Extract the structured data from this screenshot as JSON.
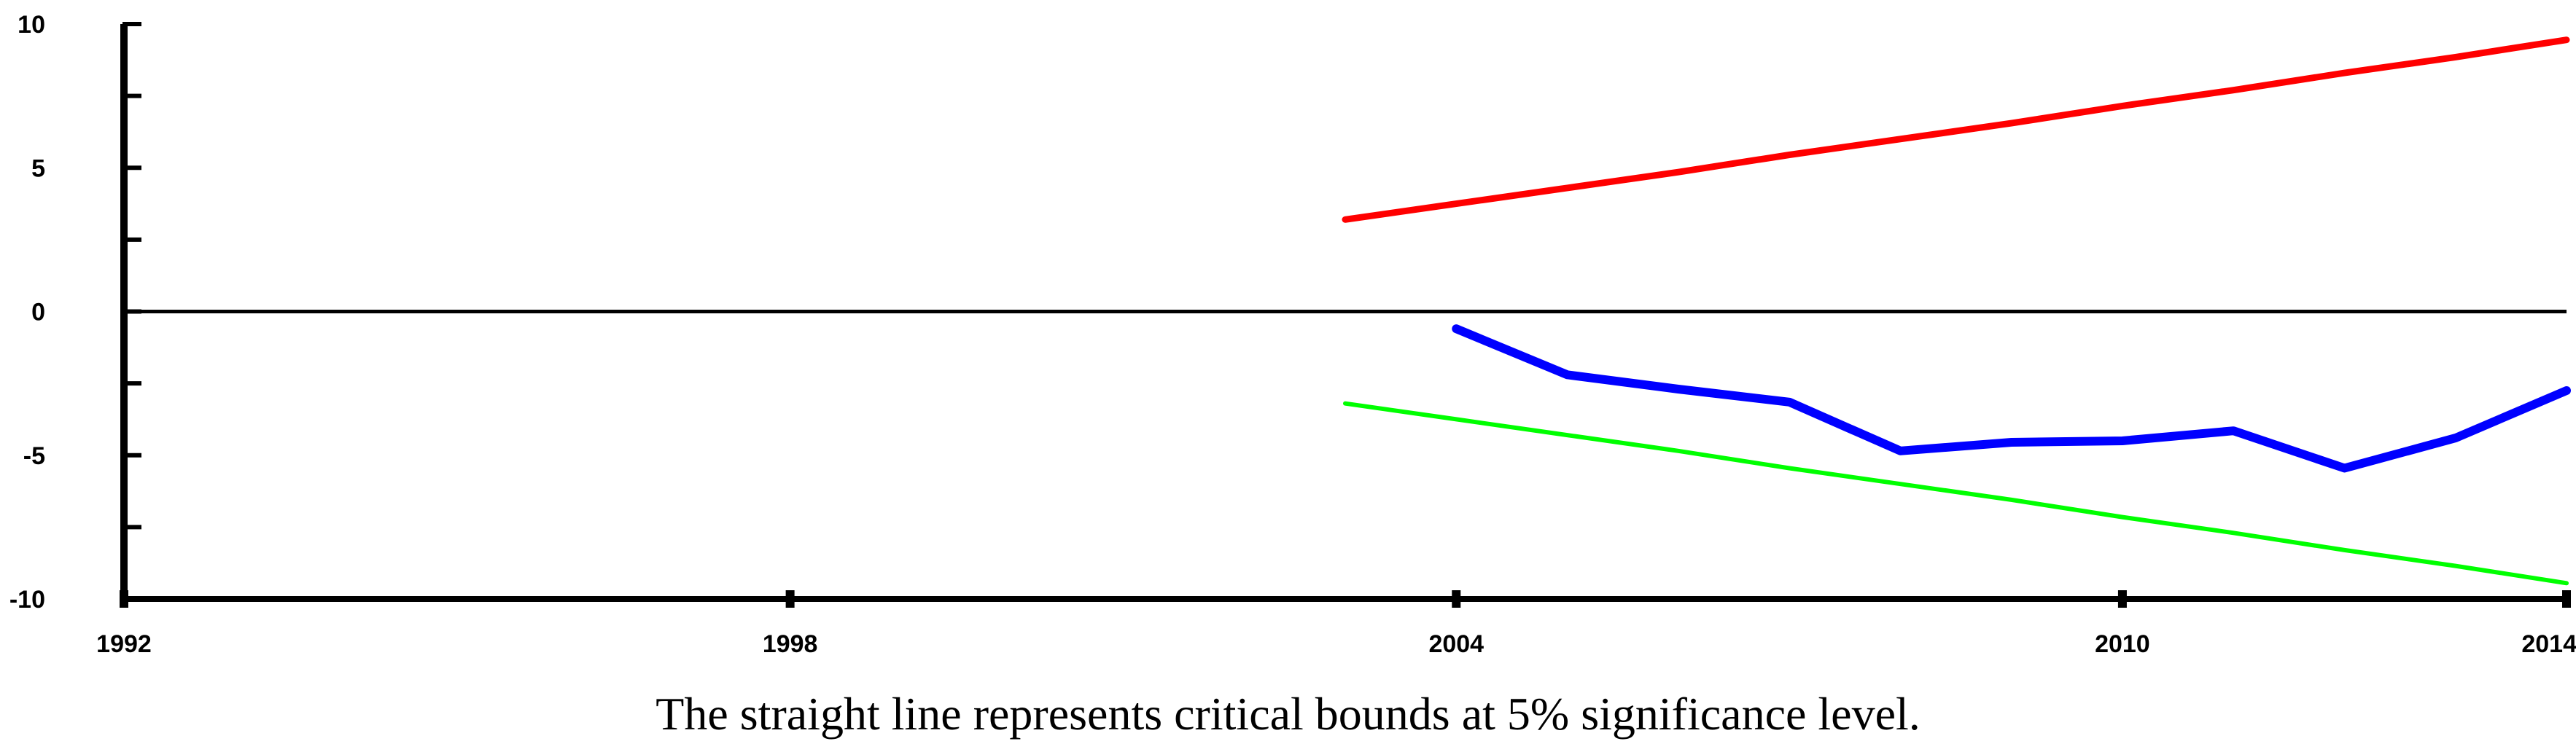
{
  "caption": "The straight line represents critical bounds at 5% significance level.",
  "chart_data": {
    "type": "line",
    "title": "",
    "xlabel": "",
    "ylabel": "",
    "xlim": [
      1992,
      2014
    ],
    "ylim": [
      -10,
      10
    ],
    "x_ticks": [
      1992,
      1998,
      2004,
      2010,
      2014
    ],
    "y_ticks": [
      10,
      5,
      0,
      -5,
      -10
    ],
    "y_minor_ticks": [
      7.5,
      2.5,
      -2.5,
      -7.5
    ],
    "zero_line": true,
    "grid": false,
    "legend": "none",
    "series": [
      {
        "color": "#ff0000",
        "x": [
          2003,
          2004,
          2005,
          2006,
          2007,
          2008,
          2009,
          2010,
          2011,
          2012,
          2013,
          2014
        ],
        "y": [
          3.2,
          3.75,
          4.3,
          4.85,
          5.45,
          6.0,
          6.55,
          7.15,
          7.7,
          8.3,
          8.85,
          9.45
        ]
      },
      {
        "color": "#0000ff",
        "x": [
          2004,
          2005,
          2006,
          2007,
          2008,
          2009,
          2010,
          2011,
          2012,
          2013,
          2014
        ],
        "y": [
          -0.6,
          -2.2,
          -2.7,
          -3.15,
          -4.85,
          -4.55,
          -4.5,
          -4.15,
          -5.45,
          -4.4,
          -2.75
        ]
      },
      {
        "color": "#00ff00",
        "x": [
          2003,
          2004,
          2005,
          2006,
          2007,
          2008,
          2009,
          2010,
          2011,
          2012,
          2013,
          2014
        ],
        "y": [
          -3.2,
          -3.75,
          -4.3,
          -4.85,
          -5.45,
          -6.0,
          -6.55,
          -7.15,
          -7.7,
          -8.3,
          -8.85,
          -9.45
        ]
      }
    ]
  }
}
